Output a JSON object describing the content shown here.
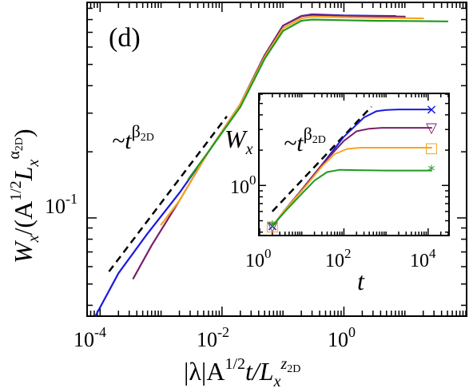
{
  "chart_data": [
    {
      "type": "line",
      "panel_label": "(d)",
      "xscale": "log",
      "yscale": "log",
      "xlim": [
        6.3e-05,
        100
      ],
      "ylim": [
        0.036,
        0.95
      ],
      "x_ticks": [
        0.0001,
        0.01,
        1
      ],
      "x_tick_labels": [
        {
          "base": "10",
          "exp": "-4"
        },
        {
          "base": "10",
          "exp": "-2"
        },
        {
          "base": "10",
          "exp": "0"
        }
      ],
      "y_ticks": [
        0.1
      ],
      "y_tick_labels": [
        {
          "base": "10",
          "exp": "-1"
        }
      ],
      "xlabel": {
        "pre": "|λ|A",
        "sup1": "1/2",
        "mid": "t/L",
        "sub": "x",
        "sup2": "z",
        "sup2sub": "2D"
      },
      "ylabel": {
        "pre": "W",
        "sub": "x",
        "mid": "/(A",
        "sup1": "1/2",
        "mid2": "L",
        "sub2": "x",
        "sup2": "α",
        "sup2sub": "2D",
        "post": ")"
      },
      "guide_label": {
        "pre": "~t",
        "sup": "β",
        "supsub": "2D"
      },
      "guide_line": {
        "x": [
          0.00014,
          0.012
        ],
        "y": [
          0.057,
          0.29
        ],
        "style": "dashed"
      },
      "series": [
        {
          "color": "#1a1adf",
          "x": [
            8.5e-05,
            0.0002,
            0.0006,
            0.002,
            0.006,
            0.02,
            0.05,
            0.1,
            0.2,
            0.3,
            1,
            3,
            7
          ],
          "y": [
            0.036,
            0.056,
            0.085,
            0.13,
            0.2,
            0.33,
            0.55,
            0.75,
            0.83,
            0.845,
            0.835,
            0.832,
            0.83
          ]
        },
        {
          "color": "#7a1f6a",
          "x": [
            0.00035,
            0.0007,
            0.002,
            0.006,
            0.02,
            0.05,
            0.1,
            0.2,
            0.3,
            1,
            3,
            10
          ],
          "y": [
            0.053,
            0.075,
            0.12,
            0.2,
            0.33,
            0.55,
            0.75,
            0.83,
            0.84,
            0.832,
            0.828,
            0.825
          ]
        },
        {
          "color": "#f5a623",
          "x": [
            0.001,
            0.002,
            0.006,
            0.02,
            0.05,
            0.1,
            0.2,
            0.3,
            1,
            3,
            10,
            20
          ],
          "y": [
            0.093,
            0.12,
            0.2,
            0.33,
            0.54,
            0.73,
            0.81,
            0.825,
            0.82,
            0.815,
            0.812,
            0.81
          ]
        },
        {
          "color": "#1f9a1f",
          "x": [
            0.0028,
            0.006,
            0.02,
            0.05,
            0.1,
            0.2,
            0.3,
            1,
            3,
            10,
            50
          ],
          "y": [
            0.15,
            0.2,
            0.32,
            0.53,
            0.71,
            0.79,
            0.8,
            0.795,
            0.79,
            0.788,
            0.785
          ]
        }
      ]
    },
    {
      "type": "line",
      "role": "inset",
      "xscale": "log",
      "yscale": "log",
      "xlim": [
        1,
        30000
      ],
      "ylim": [
        0.38,
        6
      ],
      "x_ticks": [
        1,
        100,
        10000
      ],
      "x_tick_labels": [
        {
          "base": "10",
          "exp": "0"
        },
        {
          "base": "10",
          "exp": "2"
        },
        {
          "base": "10",
          "exp": "4"
        }
      ],
      "y_ticks": [
        1
      ],
      "y_tick_labels": [
        {
          "base": "10",
          "exp": "0"
        }
      ],
      "xlabel": "t",
      "ylabel": {
        "pre": "W",
        "sub": "x"
      },
      "guide_label": {
        "pre": "~t",
        "sup": "β",
        "supsub": "2D"
      },
      "guide_line": {
        "x": [
          2,
          450
        ],
        "y": [
          0.6,
          4.7
        ],
        "style": "dashed"
      },
      "series": [
        {
          "color": "#1a1adf",
          "marker": "×",
          "x": [
            2,
            4,
            10,
            30,
            100,
            300,
            600,
            1000,
            2000,
            12000
          ],
          "y": [
            0.45,
            0.62,
            0.92,
            1.5,
            2.6,
            3.8,
            4.3,
            4.4,
            4.45,
            4.45
          ]
        },
        {
          "color": "#7a1f6a",
          "marker": "▽",
          "x": [
            2,
            4,
            10,
            30,
            100,
            200,
            400,
            800,
            2000,
            12000
          ],
          "y": [
            0.45,
            0.62,
            0.92,
            1.5,
            2.4,
            2.9,
            3.05,
            3.1,
            3.1,
            3.1
          ]
        },
        {
          "color": "#f5a623",
          "marker": "□",
          "x": [
            2,
            4,
            10,
            30,
            60,
            120,
            250,
            1000,
            12000
          ],
          "y": [
            0.45,
            0.62,
            0.9,
            1.45,
            1.85,
            2.05,
            2.1,
            2.1,
            2.1
          ]
        },
        {
          "color": "#1f9a1f",
          "marker": "*",
          "x": [
            2,
            4,
            10,
            20,
            40,
            80,
            200,
            1000,
            12000
          ],
          "y": [
            0.45,
            0.6,
            0.85,
            1.1,
            1.3,
            1.36,
            1.35,
            1.34,
            1.34
          ]
        }
      ]
    }
  ]
}
